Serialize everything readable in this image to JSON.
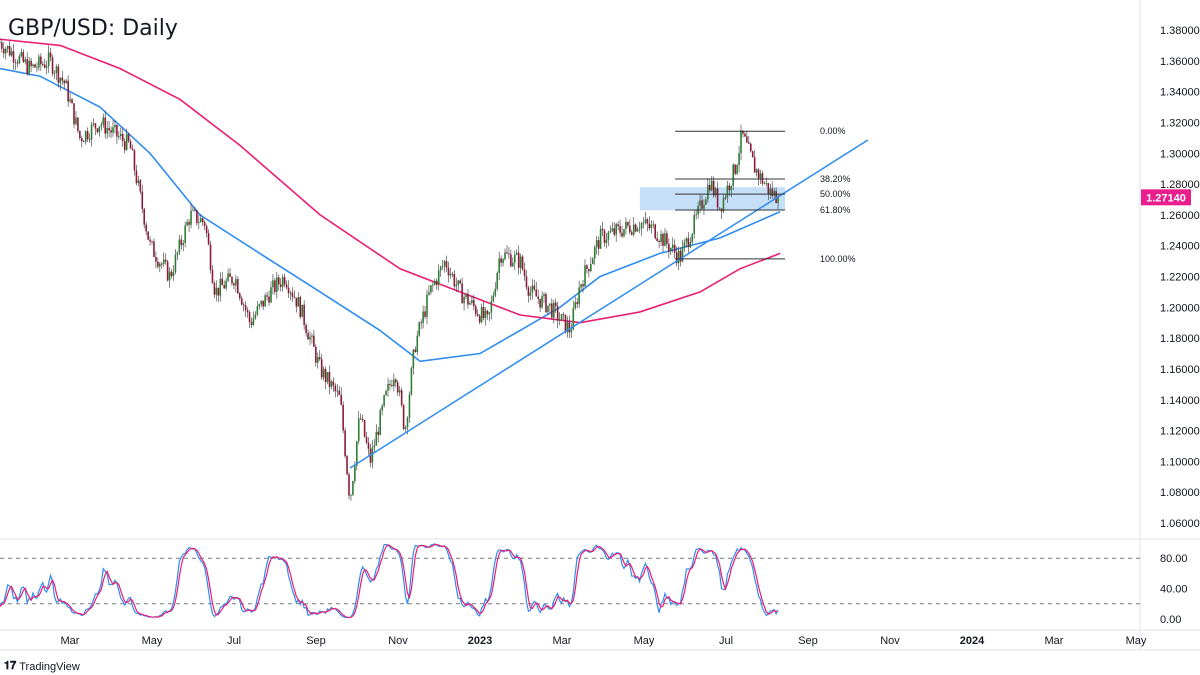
{
  "header": {
    "title": "GBP/USD: Daily"
  },
  "footer": {
    "brand": "TradingView"
  },
  "colors": {
    "up": "#2e7d32",
    "down": "#8b1a3a",
    "ma_fast": "#2f8cf0",
    "ma_slow": "#e91e73",
    "trendline": "#2f8cf0",
    "fib_zone": "#bcd9f7",
    "last_price_bg": "#e91e8c"
  },
  "chart_data": {
    "type": "candlestick",
    "title": "GBP/USD: Daily",
    "x_unit": "months since Jan 2022",
    "ylim": [
      1.05,
      1.39
    ],
    "y_ticks": [
      "1.38000",
      "1.36000",
      "1.34000",
      "1.32000",
      "1.30000",
      "1.28000",
      "1.26000",
      "1.24000",
      "1.22000",
      "1.20000",
      "1.18000",
      "1.16000",
      "1.14000",
      "1.12000",
      "1.10000",
      "1.08000",
      "1.06000"
    ],
    "x_ticks": [
      {
        "label": "Mar",
        "t": 2
      },
      {
        "label": "May",
        "t": 4
      },
      {
        "label": "Jul",
        "t": 6
      },
      {
        "label": "Sep",
        "t": 8
      },
      {
        "label": "Nov",
        "t": 10
      },
      {
        "label": "2023",
        "t": 12,
        "bold": true
      },
      {
        "label": "Mar",
        "t": 14
      },
      {
        "label": "May",
        "t": 16
      },
      {
        "label": "Jul",
        "t": 18
      },
      {
        "label": "Sep",
        "t": 20
      },
      {
        "label": "Nov",
        "t": 22
      },
      {
        "label": "2024",
        "t": 24,
        "bold": true
      },
      {
        "label": "Mar",
        "t": 26
      },
      {
        "label": "May",
        "t": 28
      }
    ],
    "last_price": "1.27140",
    "price_path": [
      [
        0.29,
        1.372
      ],
      [
        0.6,
        1.365
      ],
      [
        1.02,
        1.355
      ],
      [
        1.51,
        1.36
      ],
      [
        1.88,
        1.345
      ],
      [
        2.24,
        1.31
      ],
      [
        2.73,
        1.32
      ],
      [
        3.46,
        1.305
      ],
      [
        3.95,
        1.24
      ],
      [
        4.44,
        1.22
      ],
      [
        4.93,
        1.26
      ],
      [
        5.29,
        1.255
      ],
      [
        5.54,
        1.21
      ],
      [
        6.02,
        1.22
      ],
      [
        6.39,
        1.19
      ],
      [
        6.88,
        1.21
      ],
      [
        7.24,
        1.22
      ],
      [
        7.61,
        1.2
      ],
      [
        8.1,
        1.16
      ],
      [
        8.59,
        1.14
      ],
      [
        8.83,
        1.075
      ],
      [
        9.07,
        1.13
      ],
      [
        9.32,
        1.1
      ],
      [
        9.68,
        1.14
      ],
      [
        9.93,
        1.16
      ],
      [
        10.17,
        1.12
      ],
      [
        10.41,
        1.175
      ],
      [
        10.78,
        1.21
      ],
      [
        11.15,
        1.23
      ],
      [
        11.51,
        1.21
      ],
      [
        12.2,
        1.19
      ],
      [
        12.49,
        1.235
      ],
      [
        12.98,
        1.23
      ],
      [
        13.22,
        1.21
      ],
      [
        13.71,
        1.2
      ],
      [
        14.2,
        1.185
      ],
      [
        14.44,
        1.215
      ],
      [
        14.93,
        1.245
      ],
      [
        15.9,
        1.255
      ],
      [
        16.27,
        1.25
      ],
      [
        16.88,
        1.232
      ],
      [
        17.24,
        1.255
      ],
      [
        17.61,
        1.282
      ],
      [
        17.85,
        1.265
      ],
      [
        18.22,
        1.29
      ],
      [
        18.39,
        1.312
      ],
      [
        18.71,
        1.29
      ],
      [
        19.07,
        1.275
      ],
      [
        19.27,
        1.2714
      ]
    ],
    "moving_averages": [
      {
        "name": "MA fast",
        "color": "#2f8cf0",
        "points": [
          [
            0.29,
            1.355
          ],
          [
            1.27,
            1.35
          ],
          [
            2.73,
            1.33
          ],
          [
            3.95,
            1.3
          ],
          [
            5.17,
            1.26
          ],
          [
            6.63,
            1.235
          ],
          [
            8.1,
            1.21
          ],
          [
            9.56,
            1.185
          ],
          [
            10.54,
            1.165
          ],
          [
            12.0,
            1.17
          ],
          [
            12.98,
            1.185
          ],
          [
            13.95,
            1.2
          ],
          [
            14.93,
            1.22
          ],
          [
            16.39,
            1.235
          ],
          [
            17.85,
            1.245
          ],
          [
            19.32,
            1.262
          ]
        ]
      },
      {
        "name": "MA slow",
        "color": "#e91e73",
        "points": [
          [
            0.29,
            1.374
          ],
          [
            1.76,
            1.37
          ],
          [
            3.22,
            1.355
          ],
          [
            4.68,
            1.335
          ],
          [
            6.15,
            1.305
          ],
          [
            8.1,
            1.26
          ],
          [
            10.05,
            1.225
          ],
          [
            11.51,
            1.21
          ],
          [
            12.98,
            1.195
          ],
          [
            14.44,
            1.19
          ],
          [
            15.9,
            1.197
          ],
          [
            17.37,
            1.21
          ],
          [
            18.34,
            1.225
          ],
          [
            19.32,
            1.235
          ]
        ]
      }
    ],
    "trendline": [
      [
        8.83,
        1.0957
      ],
      [
        21.46,
        1.3086
      ]
    ],
    "fibonacci": {
      "t_range": [
        16.76,
        19.44
      ],
      "levels": [
        {
          "label": "0.00%",
          "price": 1.3143
        },
        {
          "label": "38.20%",
          "price": 1.2833
        },
        {
          "label": "50.00%",
          "price": 1.2735
        },
        {
          "label": "61.80%",
          "price": 1.2632
        },
        {
          "label": "100.00%",
          "price": 1.2314
        }
      ]
    },
    "zone": {
      "t_range": [
        15.9,
        19.44
      ],
      "price_range": [
        1.263,
        1.278
      ]
    },
    "oscillator": {
      "ylim": [
        0,
        100
      ],
      "y_ticks": [
        "80.00",
        "40.00",
        "0.00"
      ],
      "levels": [
        80,
        20
      ]
    }
  }
}
